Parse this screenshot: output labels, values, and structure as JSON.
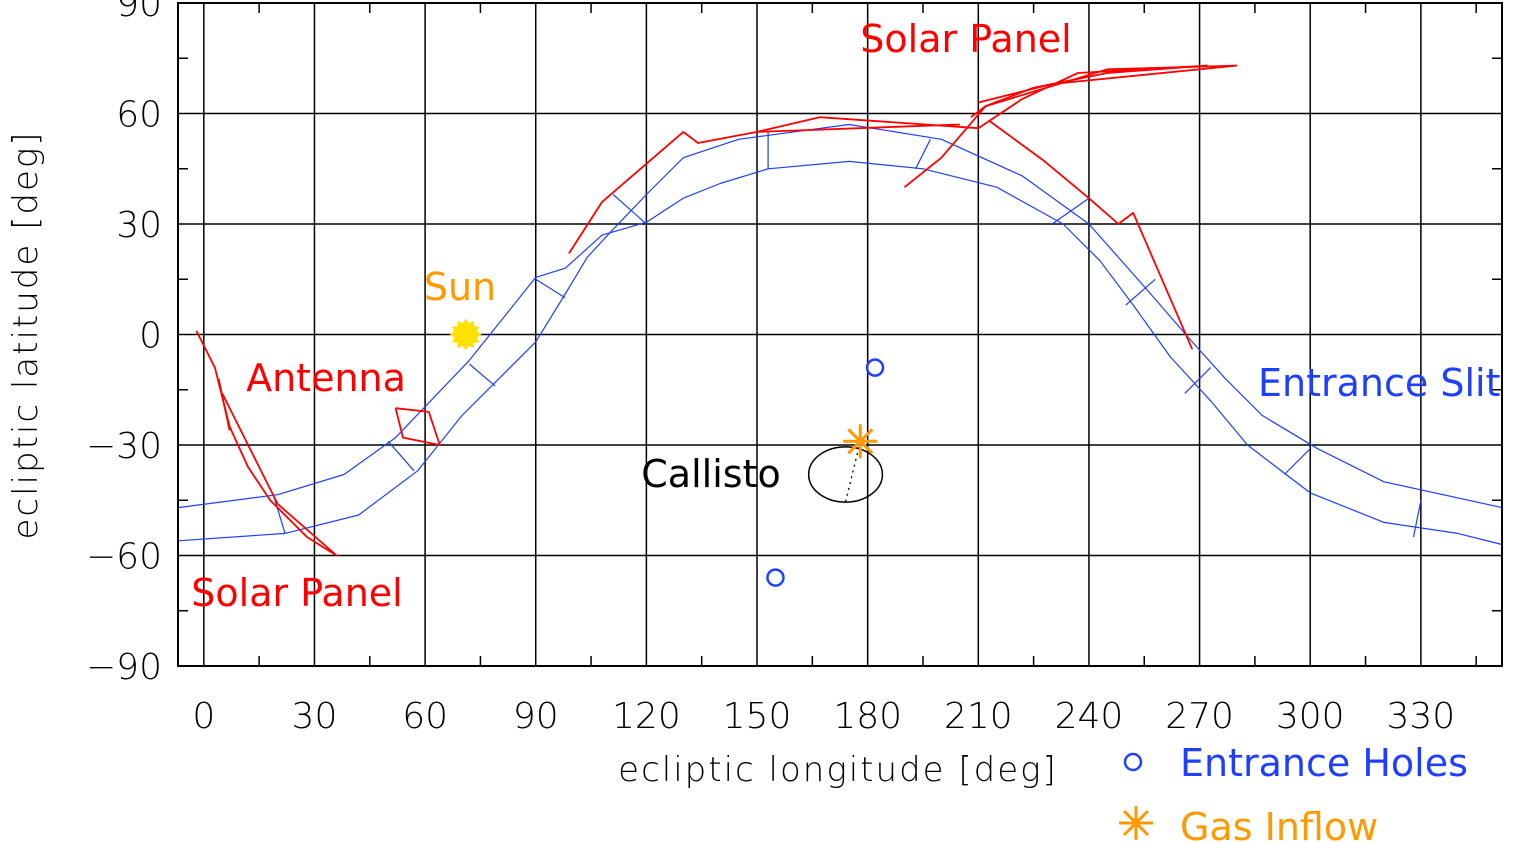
{
  "chart_data": {
    "type": "scatter",
    "title": "",
    "xlabel": "ecliptic longitude [deg]",
    "ylabel": "ecliptic latitude [deg]",
    "xlim": [
      -7,
      352
    ],
    "ylim": [
      -90,
      90
    ],
    "x_ticks": [
      0,
      30,
      60,
      90,
      120,
      150,
      180,
      210,
      240,
      270,
      300,
      330
    ],
    "x_tick_labels": [
      "0",
      "30",
      "60",
      "90",
      "120",
      "150",
      "180",
      "210",
      "240",
      "270",
      "300",
      "330"
    ],
    "y_ticks": [
      -90,
      -60,
      -30,
      0,
      30,
      60,
      90
    ],
    "y_tick_labels": [
      "−90",
      "−60",
      "−30",
      "0",
      "30",
      "60",
      "90"
    ],
    "grid": true,
    "colors": {
      "red": "#ff0000",
      "blue": "#1f3fff",
      "orange": "#ff9900",
      "sun": "#ffe000",
      "black": "#000000"
    },
    "entrance_slit": {
      "upper": [
        [
          -7,
          -47
        ],
        [
          20,
          -43.5
        ],
        [
          38,
          -38
        ],
        [
          52,
          -28
        ],
        [
          72,
          -7
        ],
        [
          80,
          3
        ],
        [
          90,
          15.5
        ],
        [
          98,
          18
        ],
        [
          108,
          27
        ],
        [
          120,
          30.5
        ],
        [
          130,
          37
        ],
        [
          140,
          41
        ],
        [
          153,
          45
        ],
        [
          175,
          47
        ],
        [
          195,
          45
        ],
        [
          215,
          40
        ],
        [
          233,
          30
        ],
        [
          243,
          20
        ],
        [
          252,
          8
        ],
        [
          262,
          -6
        ],
        [
          273,
          -18
        ],
        [
          283,
          -30
        ],
        [
          300,
          -43
        ],
        [
          320,
          -51
        ],
        [
          340,
          -54
        ],
        [
          352,
          -57
        ]
      ],
      "lower": [
        [
          -7,
          -56
        ],
        [
          22,
          -54
        ],
        [
          42,
          -49
        ],
        [
          58,
          -37
        ],
        [
          70,
          -22
        ],
        [
          78,
          -14
        ],
        [
          90,
          -2
        ],
        [
          98,
          11
        ],
        [
          104,
          21
        ],
        [
          110,
          27.5
        ],
        [
          120,
          38
        ],
        [
          130,
          48
        ],
        [
          145,
          53
        ],
        [
          175,
          57
        ],
        [
          200,
          53
        ],
        [
          222,
          43
        ],
        [
          240,
          30
        ],
        [
          255,
          13
        ],
        [
          268,
          -2
        ],
        [
          277,
          -12
        ],
        [
          287,
          -22
        ],
        [
          302,
          -31
        ],
        [
          320,
          -40
        ],
        [
          352,
          -47
        ]
      ],
      "rungs": [
        [
          [
            19,
            -44
          ],
          [
            22,
            -54
          ]
        ],
        [
          [
            50,
            -29
          ],
          [
            57,
            -37
          ]
        ],
        [
          [
            72,
            -8
          ],
          [
            79,
            -14
          ]
        ],
        [
          [
            90,
            15
          ],
          [
            98,
            10
          ]
        ],
        [
          [
            111,
            38
          ],
          [
            120,
            30
          ]
        ],
        [
          [
            153,
            55
          ],
          [
            153,
            45
          ]
        ],
        [
          [
            197,
            53
          ],
          [
            193,
            45
          ]
        ],
        [
          [
            240,
            37
          ],
          [
            230,
            30
          ]
        ],
        [
          [
            258,
            15
          ],
          [
            250,
            8
          ]
        ],
        [
          [
            273,
            -9
          ],
          [
            266,
            -16
          ]
        ],
        [
          [
            300,
            -31
          ],
          [
            293,
            -38
          ]
        ],
        [
          [
            330,
            -45
          ],
          [
            328,
            -55
          ]
        ]
      ]
    },
    "solar_panel_left": [
      [
        [
          -2,
          1
        ],
        [
          3,
          -9
        ],
        [
          7,
          -25
        ],
        [
          12,
          -36
        ],
        [
          18,
          -45
        ],
        [
          28,
          -55
        ],
        [
          36,
          -60
        ],
        [
          20,
          -46
        ],
        [
          13,
          -32
        ],
        [
          5,
          -16
        ]
      ],
      [
        [
          4,
          -12
        ],
        [
          7,
          -26
        ]
      ]
    ],
    "antenna": [
      [
        [
          52,
          -20
        ],
        [
          61,
          -21
        ],
        [
          64,
          -30
        ],
        [
          54,
          -28
        ],
        [
          52,
          -20
        ]
      ]
    ],
    "solar_panel_right": [
      [
        [
          99,
          22
        ],
        [
          108,
          36
        ],
        [
          130,
          55
        ],
        [
          134,
          52
        ],
        [
          150,
          55
        ],
        [
          167,
          59
        ],
        [
          210,
          56
        ],
        [
          222,
          64
        ],
        [
          237,
          71
        ],
        [
          272,
          73
        ],
        [
          245,
          71
        ],
        [
          225,
          67
        ],
        [
          212,
          62
        ],
        [
          200,
          48
        ],
        [
          190,
          40
        ]
      ],
      [
        [
          208,
          59
        ],
        [
          212,
          62
        ],
        [
          245,
          72
        ],
        [
          280,
          73
        ],
        [
          230,
          68
        ],
        [
          210,
          63
        ]
      ],
      [
        [
          150,
          55
        ],
        [
          205,
          57
        ]
      ],
      [
        [
          213,
          58
        ],
        [
          228,
          47
        ],
        [
          240,
          37
        ],
        [
          248,
          30
        ],
        [
          252,
          33
        ],
        [
          268,
          -4
        ]
      ]
    ],
    "entrance_holes": [
      [
        182,
        -9
      ],
      [
        155,
        -66
      ]
    ],
    "gas_inflow": [
      178,
      -29
    ],
    "callisto": {
      "center": [
        174,
        -38
      ],
      "rx": 10,
      "ry": 7.5,
      "label": "Callisto"
    },
    "sun": {
      "position": [
        71,
        0
      ],
      "label": "Sun"
    },
    "labels": {
      "solar_panel_top": "Solar Panel",
      "solar_panel_bottom": "Solar Panel",
      "antenna": "Antenna",
      "entrance_slit": "Entrance Slit"
    },
    "legend": [
      {
        "marker": "circle",
        "label": "Entrance Holes"
      },
      {
        "marker": "asterisk",
        "label": "Gas Inflow"
      }
    ],
    "legend_position": "bottom-right"
  }
}
